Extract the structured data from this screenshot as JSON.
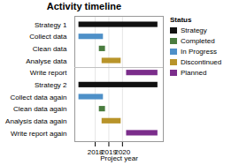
{
  "chart_data": {
    "type": "gantt",
    "title": "Activity timeline",
    "xlabel": "Project year",
    "orientation": "horizontal",
    "categories": [
      "Strategy 1",
      "Collect data",
      "Clean data",
      "Analyse data",
      "Write report",
      "Strategy 2",
      "Collect data again",
      "Clean data again",
      "Analysis data again",
      "Write report again"
    ],
    "starts": [
      2016.8,
      2016.8,
      2018.3,
      2018.5,
      2020.3,
      2016.8,
      2016.8,
      2018.3,
      2018.5,
      2020.3
    ],
    "ends": [
      2022.6,
      2018.6,
      2018.75,
      2019.9,
      2022.6,
      2022.6,
      2018.6,
      2018.75,
      2019.9,
      2022.6
    ],
    "statuses": [
      "Strategy",
      "In Progress",
      "Completed",
      "Discontinued",
      "Planned",
      "Strategy",
      "In Progress",
      "Completed",
      "Discontinued",
      "Planned"
    ],
    "series": [
      {
        "name": "Strategy",
        "color": "#111111"
      },
      {
        "name": "Completed",
        "color": "#4a7c3f"
      },
      {
        "name": "In Progress",
        "color": "#4e90c8"
      },
      {
        "name": "Discontinued",
        "color": "#b8942a"
      },
      {
        "name": "Planned",
        "color": "#7b2d8b"
      }
    ],
    "legend": "right",
    "legend_title": "Status",
    "divider_after": "Analyse data",
    "xlim": [
      2016.5,
      2023.0
    ],
    "xticks": [
      2018,
      2019,
      2020
    ],
    "grid": true
  }
}
